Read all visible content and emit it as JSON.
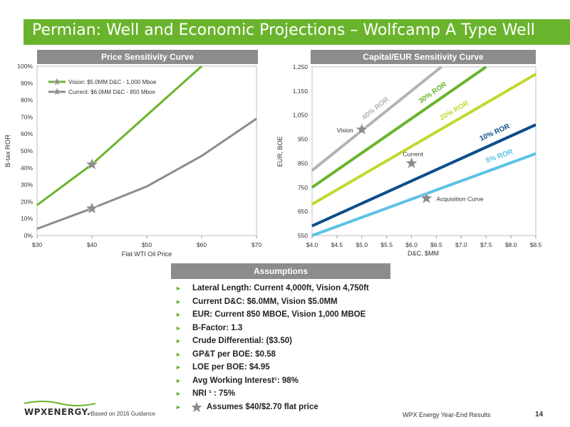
{
  "header": {
    "title": "Permian: Well and Economic Projections – Wolfcamp A Type Well"
  },
  "left_panel": {
    "header": "Price Sensitivity Curve"
  },
  "right_panel": {
    "header": "Capital/EUR Sensitivity Curve"
  },
  "assumptions": {
    "header": "Assumptions",
    "items": [
      "Lateral Length:  Current 4,000ft, Vision 4,750ft",
      "Current D&C: $6.0MM, Vision $5.0MM",
      "EUR: Current 850 MBOE, Vision 1,000 MBOE",
      "B-Factor: 1.3",
      "Crude Differential: ($3.50)",
      "GP&T per BOE: $0.58",
      "LOE per BOE: $4.95",
      "Avg Working Interest¹: 98%",
      "NRI ¹ : 75%",
      "Assumes $40/$2.70 flat price"
    ]
  },
  "footer": {
    "logo": "WPXENERGY.",
    "footnote": "¹Based on 2016 Guidance",
    "center": "WPX Energy Year-End Results",
    "page_number": "14"
  },
  "colors": {
    "brand_green": "#6ab42d",
    "header_gray": "#8c8c8c",
    "ror40": "#b3b3b3",
    "ror30": "#6ab42d",
    "ror20": "#c3d82e",
    "ror10": "#0d4d8c",
    "ror5": "#5bc2e7"
  },
  "chart_data": [
    {
      "type": "line",
      "title": "Price Sensitivity Curve",
      "xlabel": "Flat WTI Oil Price",
      "ylabel": "B-tax ROR",
      "x_ticks": [
        "$30",
        "$40",
        "$50",
        "$60",
        "$70"
      ],
      "y_ticks": [
        "0%",
        "10%",
        "20%",
        "30%",
        "40%",
        "50%",
        "60%",
        "70%",
        "80%",
        "90%",
        "100%"
      ],
      "xlim": [
        30,
        70
      ],
      "ylim": [
        0,
        100
      ],
      "legend_position": "top-left",
      "series": [
        {
          "name": "Vision: $5.0MM D&C - 1,000 Mboe",
          "color": "#6ab42d",
          "x": [
            30,
            40,
            50,
            60
          ],
          "y": [
            18,
            42,
            71,
            100
          ],
          "marker_x": 40,
          "marker_y": 42
        },
        {
          "name": "Current: $6.0MM D&C - 850 Mboe",
          "color": "#8c8c8c",
          "x": [
            30,
            40,
            50,
            60,
            70
          ],
          "y": [
            4,
            16,
            29,
            47,
            69
          ],
          "marker_x": 40,
          "marker_y": 16
        }
      ]
    },
    {
      "type": "line",
      "title": "Capital/EUR Sensitivity Curve",
      "xlabel": "D&C, $MM",
      "ylabel": "EUR, BOE",
      "x_ticks": [
        "$4.0",
        "$4.5",
        "$5.0",
        "$5.5",
        "$6.0",
        "$6.5",
        "$7.0",
        "$7.5",
        "$8.0",
        "$8.5"
      ],
      "y_ticks": [
        "550",
        "650",
        "750",
        "850",
        "950",
        "1,050",
        "1,150",
        "1,250"
      ],
      "xlim": [
        4.0,
        8.5
      ],
      "ylim": [
        550,
        1250
      ],
      "series": [
        {
          "name": "40% ROR",
          "color": "#b3b3b3",
          "x": [
            4.0,
            6.6
          ],
          "y": [
            820,
            1250
          ]
        },
        {
          "name": "30% ROR",
          "color": "#6ab42d",
          "x": [
            4.0,
            7.5
          ],
          "y": [
            750,
            1250
          ]
        },
        {
          "name": "20% ROR",
          "color": "#c3d82e",
          "x": [
            4.0,
            8.5
          ],
          "y": [
            680,
            1220
          ]
        },
        {
          "name": "10% ROR",
          "color": "#0d4d8c",
          "x": [
            4.0,
            8.5
          ],
          "y": [
            590,
            1010
          ]
        },
        {
          "name": "5% ROR",
          "color": "#5bc2e7",
          "x": [
            4.0,
            8.5
          ],
          "y": [
            550,
            890
          ]
        }
      ],
      "points": [
        {
          "label": "Vision",
          "x": 5.0,
          "y": 990
        },
        {
          "label": "Current",
          "x": 6.0,
          "y": 850
        },
        {
          "label": "Acquisition Curve",
          "x": 6.3,
          "y": 705
        }
      ]
    }
  ]
}
